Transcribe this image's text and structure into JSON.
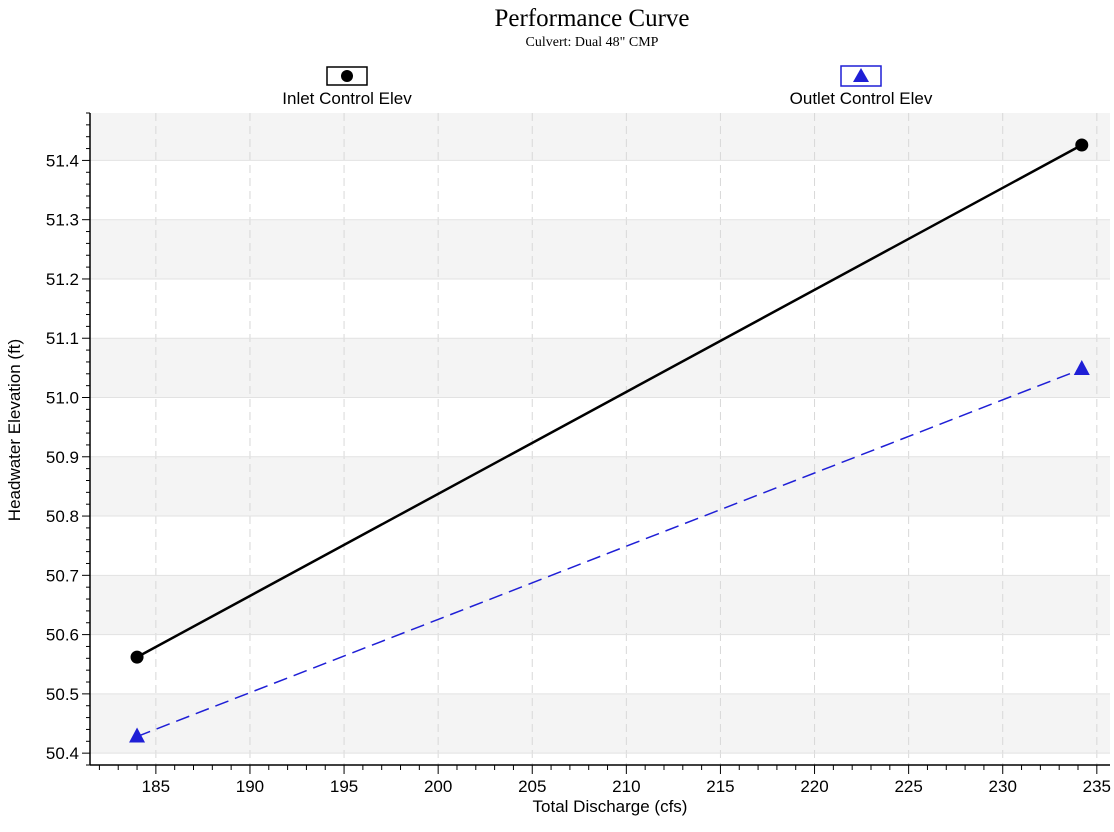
{
  "chart_data": {
    "type": "line",
    "title": "Performance Curve",
    "subtitle": "Culvert: Dual 48\" CMP",
    "xlabel": "Total Discharge (cfs)",
    "ylabel": "Headwater Elevation (ft)",
    "xlim": [
      181.5,
      235.7
    ],
    "ylim": [
      50.38,
      51.48
    ],
    "x_ticks": [
      185,
      190,
      195,
      200,
      205,
      210,
      215,
      220,
      225,
      230,
      235
    ],
    "y_ticks": [
      50.4,
      50.5,
      50.6,
      50.7,
      50.8,
      50.9,
      51.0,
      51.1,
      51.2,
      51.3,
      51.4
    ],
    "grid": true,
    "legend_position": "top",
    "series": [
      {
        "name": "Inlet Control Elev",
        "x": [
          184.0,
          234.2
        ],
        "y": [
          50.562,
          51.426
        ],
        "color": "#000000",
        "marker": "circle",
        "line_style": "solid"
      },
      {
        "name": "Outlet Control Elev",
        "x": [
          184.0,
          234.2
        ],
        "y": [
          50.428,
          51.048
        ],
        "color": "#1f1fd6",
        "marker": "triangle",
        "line_style": "dashed"
      }
    ]
  }
}
